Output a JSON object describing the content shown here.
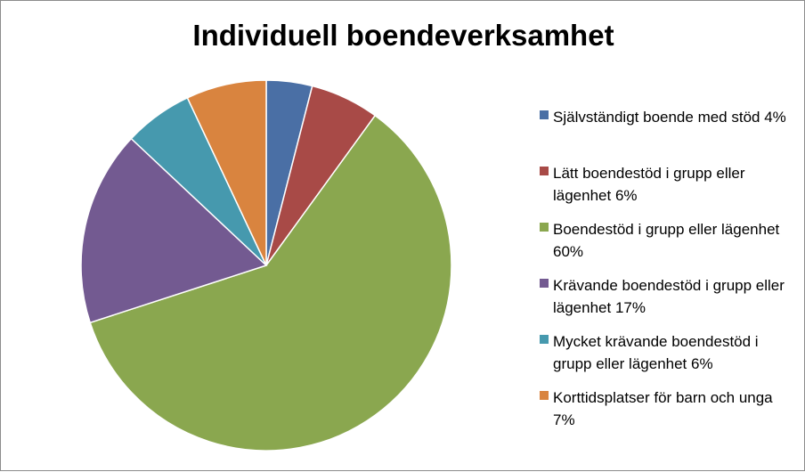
{
  "chart_data": {
    "type": "pie",
    "title": "Individuell boendeverksamhet",
    "legend_position": "right",
    "slices": [
      {
        "label": "Självständigt boende med stöd 4%",
        "value": 4,
        "color": "#4a6fa5"
      },
      {
        "label": "Lätt boendestöd i grupp eller lägenhet 6%",
        "value": 6,
        "color": "#a84a47"
      },
      {
        "label": "Boendestöd i grupp eller lägenhet 60%",
        "value": 60,
        "color": "#8aa74f"
      },
      {
        "label": "Krävande boendestöd i grupp eller lägenhet 17%",
        "value": 17,
        "color": "#735a91"
      },
      {
        "label": "Mycket krävande boendestöd i grupp eller lägenhet 6%",
        "value": 6,
        "color": "#4699ae"
      },
      {
        "label": "Korttidsplatser för barn och unga 7%",
        "value": 7,
        "color": "#d9843f"
      }
    ]
  }
}
